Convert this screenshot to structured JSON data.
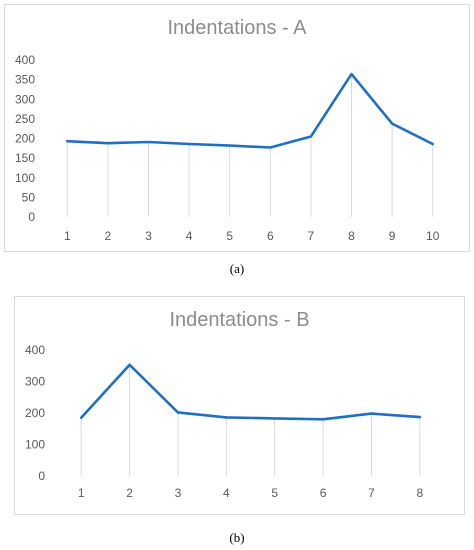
{
  "chart_data": [
    {
      "type": "line",
      "title": "Indentations - A",
      "caption": "(a)",
      "categories": [
        "1",
        "2",
        "3",
        "4",
        "5",
        "6",
        "7",
        "8",
        "9",
        "10"
      ],
      "series": [
        {
          "values": [
            193,
            188,
            191,
            186,
            182,
            177,
            205,
            364,
            238,
            186
          ],
          "color": "#1f6fc4"
        }
      ],
      "yticks": [
        0,
        50,
        100,
        150,
        200,
        250,
        300,
        350,
        400
      ],
      "ylim": [
        0,
        400
      ],
      "grid": "vertical drop lines",
      "legend": "none"
    },
    {
      "type": "line",
      "title": "Indentations - B",
      "caption": "(b)",
      "categories": [
        "1",
        "2",
        "3",
        "4",
        "5",
        "6",
        "7",
        "8"
      ],
      "series": [
        {
          "values": [
            185,
            353,
            202,
            186,
            183,
            180,
            198,
            187
          ],
          "color": "#1f6fc4"
        }
      ],
      "yticks": [
        0,
        100,
        200,
        300,
        400
      ],
      "ylim": [
        0,
        400
      ],
      "grid": "vertical drop lines",
      "legend": "none"
    }
  ]
}
